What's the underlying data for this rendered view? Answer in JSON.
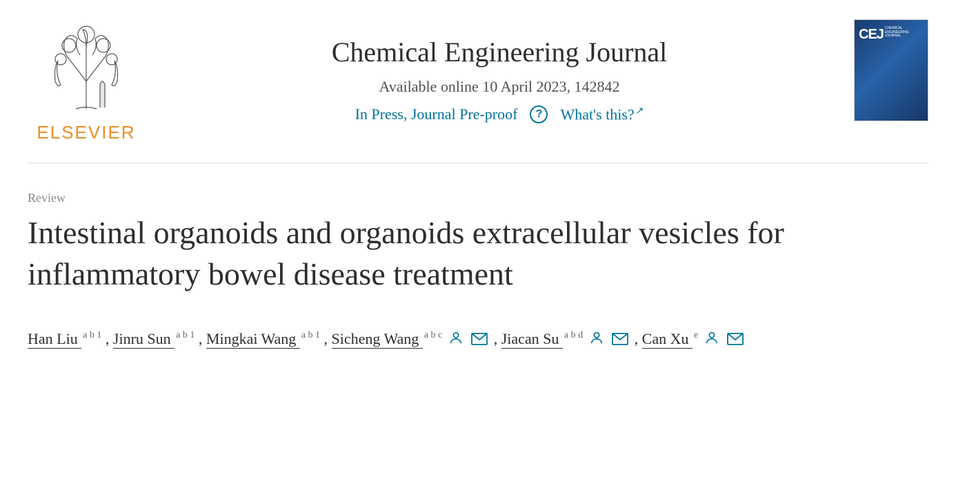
{
  "publisher": {
    "name": "ELSEVIER"
  },
  "journal": {
    "title": "Chemical Engineering Journal",
    "availability": "Available online 10 April 2023, 142842",
    "status": "In Press, Journal Pre-proof",
    "whats_this": "What's this?",
    "cover_abbr": "CEJ",
    "cover_sub": "CHEMICAL ENGINEERING JOURNAL"
  },
  "article": {
    "type": "Review",
    "title": "Intestinal organoids and organoids extracellular vesicles for inflammatory bowel disease treatment"
  },
  "authors": [
    {
      "name": "Han Liu",
      "affil": "a b 1",
      "person_icon": false,
      "mail_icon": false
    },
    {
      "name": "Jinru Sun",
      "affil": "a b 1",
      "person_icon": false,
      "mail_icon": false
    },
    {
      "name": "Mingkai Wang",
      "affil": "a b 1",
      "person_icon": false,
      "mail_icon": false
    },
    {
      "name": "Sicheng Wang",
      "affil": "a b c",
      "person_icon": true,
      "mail_icon": true
    },
    {
      "name": "Jiacan Su",
      "affil": "a b d",
      "person_icon": true,
      "mail_icon": true
    },
    {
      "name": "Can Xu",
      "affil": "e",
      "person_icon": true,
      "mail_icon": true
    }
  ],
  "colors": {
    "link": "#007398",
    "elsevier_orange": "#ec8d22",
    "text_body": "#2e2e2e",
    "text_muted": "#8a8a8a"
  }
}
